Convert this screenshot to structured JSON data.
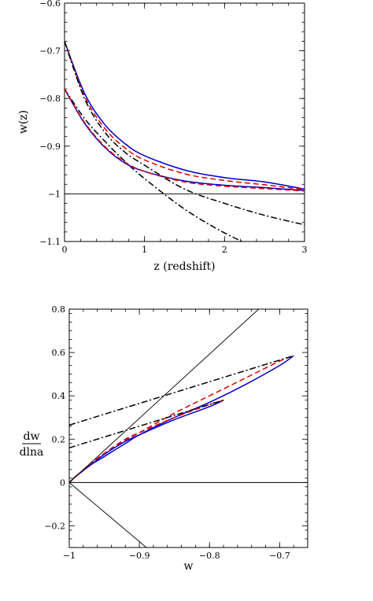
{
  "chart_data": [
    {
      "type": "line",
      "xlabel": "z (redshift)",
      "ylabel": "w(z)",
      "xlim": [
        0,
        3
      ],
      "ylim": [
        -1.1,
        -0.6
      ],
      "xticks": [
        0,
        1,
        2,
        3
      ],
      "xtick_labels": [
        "0",
        "1",
        "2",
        "3"
      ],
      "yticks": [
        -1.1,
        -1.0,
        -0.9,
        -0.8,
        -0.7,
        -0.6
      ],
      "ytick_labels": [
        "−1.1",
        "−1",
        "−0.9",
        "−0.8",
        "−0.7",
        "−0.6"
      ],
      "series": [
        {
          "style": "solid",
          "color": "#0000cc",
          "x": [
            0,
            0.25,
            0.5,
            0.75,
            1.0,
            1.5,
            2.0,
            2.5,
            3.0
          ],
          "y": [
            -0.68,
            -0.789,
            -0.854,
            -0.894,
            -0.92,
            -0.95,
            -0.966,
            -0.975,
            -0.99
          ]
        },
        {
          "style": "dashed",
          "color": "#dd0000",
          "x": [
            0,
            0.25,
            0.5,
            0.75,
            1.0,
            1.5,
            2.0,
            2.5,
            3.0
          ],
          "y": [
            -0.68,
            -0.795,
            -0.862,
            -0.903,
            -0.929,
            -0.958,
            -0.972,
            -0.981,
            -0.991
          ]
        },
        {
          "style": "dashdot",
          "color": "#000000",
          "x": [
            0,
            0.25,
            0.5,
            0.75,
            1.0,
            1.5,
            2.0,
            2.5,
            3.0
          ],
          "y": [
            -0.78,
            -0.842,
            -0.889,
            -0.931,
            -0.968,
            -1.032,
            -1.082,
            -1.12,
            -1.15
          ]
        },
        {
          "style": "solid",
          "color": "#0000cc",
          "x": [
            0,
            0.25,
            0.5,
            0.75,
            1.0,
            1.5,
            2.0,
            2.5,
            3.0
          ],
          "y": [
            -0.78,
            -0.852,
            -0.902,
            -0.935,
            -0.953,
            -0.973,
            -0.982,
            -0.987,
            -0.993
          ]
        },
        {
          "style": "dashed",
          "color": "#dd0000",
          "x": [
            0,
            0.25,
            0.5,
            0.75,
            1.0,
            1.5,
            2.0,
            2.5,
            3.0
          ],
          "y": [
            -0.78,
            -0.85,
            -0.9,
            -0.933,
            -0.953,
            -0.975,
            -0.984,
            -0.989,
            -0.994
          ]
        },
        {
          "style": "dashdot",
          "color": "#000000",
          "x": [
            0,
            0.25,
            0.5,
            0.75,
            1.0,
            1.5,
            2.0,
            2.5,
            3.0
          ],
          "y": [
            -0.68,
            -0.8,
            -0.87,
            -0.912,
            -0.94,
            -0.99,
            -1.02,
            -1.045,
            -1.065
          ]
        },
        {
          "style": "solid",
          "color": "#000000",
          "x": [
            0,
            3
          ],
          "y": [
            -1.0,
            -1.0
          ]
        }
      ]
    },
    {
      "type": "line",
      "xlabel": "w",
      "ylabel": "dw/dlna",
      "ylabel_num": "dw",
      "ylabel_den": "dlna",
      "xlim": [
        -1.0,
        -0.66
      ],
      "ylim": [
        -0.3,
        0.8
      ],
      "xticks": [
        -1.0,
        -0.9,
        -0.8,
        -0.7
      ],
      "xtick_labels": [
        "−1",
        "−0.9",
        "−0.8",
        "−0.7"
      ],
      "yticks": [
        -0.2,
        0,
        0.2,
        0.4,
        0.6,
        0.8
      ],
      "ytick_labels": [
        "−0.2",
        "0",
        "0.2",
        "0.4",
        "0.6",
        "0.8"
      ],
      "series": [
        {
          "style": "solid",
          "color": "#0000cc",
          "x": [
            -1.0,
            -0.99,
            -0.97,
            -0.95,
            -0.92,
            -0.9,
            -0.85,
            -0.8,
            -0.75,
            -0.7,
            -0.68
          ],
          "y": [
            0,
            0.03,
            0.08,
            0.12,
            0.18,
            0.22,
            0.3,
            0.37,
            0.45,
            0.54,
            0.585
          ]
        },
        {
          "style": "dashed",
          "color": "#dd0000",
          "x": [
            -1.0,
            -0.99,
            -0.97,
            -0.95,
            -0.92,
            -0.9,
            -0.85,
            -0.8,
            -0.75,
            -0.7,
            -0.68
          ],
          "y": [
            0,
            0.03,
            0.085,
            0.13,
            0.195,
            0.23,
            0.32,
            0.4,
            0.48,
            0.56,
            0.585
          ]
        },
        {
          "style": "solid",
          "color": "#0000cc",
          "x": [
            -1.0,
            -0.99,
            -0.97,
            -0.95,
            -0.92,
            -0.9,
            -0.85,
            -0.8,
            -0.78
          ],
          "y": [
            0,
            0.03,
            0.08,
            0.13,
            0.19,
            0.22,
            0.29,
            0.35,
            0.38
          ]
        },
        {
          "style": "dashed",
          "color": "#dd0000",
          "x": [
            -1.0,
            -0.99,
            -0.97,
            -0.95,
            -0.92,
            -0.9,
            -0.85,
            -0.8,
            -0.78
          ],
          "y": [
            0,
            0.03,
            0.085,
            0.135,
            0.2,
            0.23,
            0.3,
            0.36,
            0.38
          ]
        },
        {
          "style": "dashdot",
          "color": "#000000",
          "x": [
            -1.0,
            -0.68
          ],
          "y": [
            0.265,
            0.585
          ]
        },
        {
          "style": "dashdot",
          "color": "#000000",
          "x": [
            -1.0,
            -0.78
          ],
          "y": [
            0.16,
            0.38
          ]
        },
        {
          "style": "solid",
          "color": "#000000",
          "x": [
            -1.0,
            -0.66
          ],
          "y": [
            0,
            0
          ]
        },
        {
          "style": "solid",
          "color": "#000000",
          "x": [
            -1.0,
            -0.73
          ],
          "y": [
            0,
            0.8
          ]
        },
        {
          "style": "solid",
          "color": "#000000",
          "x": [
            -1.0,
            -0.89
          ],
          "y": [
            0,
            -0.3
          ]
        }
      ]
    }
  ]
}
